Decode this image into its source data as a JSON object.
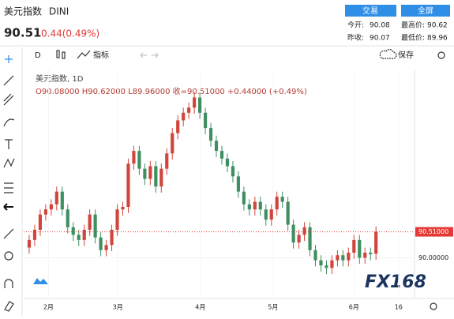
{
  "header": {
    "title": "美元指数",
    "symbol": "DINI",
    "price": 90.51,
    "change": "0.44(0.49%)",
    "buttons": [
      "交易",
      "全屏"
    ],
    "stats": [
      {
        "label": "今开:",
        "value": 90.08
      },
      {
        "label": "最高价:",
        "value": 90.62
      },
      {
        "label": "昨收:",
        "value": 90.07
      },
      {
        "label": "最低价:",
        "value": 89.96
      }
    ]
  },
  "toolbar": {
    "interval": "D",
    "indicators": "指标",
    "save": "保存"
  },
  "logo": "FX168",
  "chart_data": {
    "type": "candlestick",
    "name": "美元指数, 1D",
    "ohlc_text": "O90.08000 H90.62000 L89.96000 收=90.51000 +0.44000 (+0.49%)",
    "up_color": "#d0463c",
    "down_color": "#3f8f62",
    "xlim": [
      -1,
      70
    ],
    "xticks": [
      {
        "value": 3.5,
        "label": "2月"
      },
      {
        "value": 16.1,
        "label": "3月"
      },
      {
        "value": 31.1,
        "label": "4月"
      },
      {
        "value": 44.3,
        "label": "5月"
      },
      {
        "value": 59,
        "label": "6月"
      },
      {
        "value": 67.1,
        "label": "16"
      }
    ],
    "ylim": [
      89.2,
      93.7
    ],
    "yticks": [
      {
        "value": 90,
        "label": "90.00000"
      }
    ],
    "last_price": {
      "value": 90.51,
      "label": "90.51000",
      "color": "#e53935"
    },
    "open": [
      90.2,
      90.35,
      90.55,
      90.85,
      90.95,
      91.05,
      91.3,
      90.95,
      90.6,
      90.45,
      90.35,
      90.55,
      90.85,
      90.4,
      90.15,
      90.25,
      90.55,
      90.95,
      91.0,
      91.85,
      92.1,
      91.75,
      91.55,
      91.8,
      91.4,
      91.75,
      92.05,
      92.45,
      92.7,
      92.85,
      92.95,
      93.15,
      92.85,
      92.55,
      92.3,
      92.1,
      91.95,
      91.8,
      91.6,
      91.3,
      91.05,
      90.95,
      91.1,
      90.95,
      90.75,
      90.95,
      91.2,
      91.1,
      90.65,
      90.3,
      90.45,
      90.6,
      90.15,
      89.95,
      89.85,
      89.8,
      89.95,
      90.05,
      89.95,
      90.1,
      90.35,
      90.0,
      90.1,
      90.08
    ],
    "high": [
      90.45,
      90.65,
      90.95,
      91.05,
      91.15,
      91.4,
      91.4,
      91.05,
      90.7,
      90.55,
      90.65,
      90.95,
      90.95,
      90.5,
      90.35,
      90.65,
      91.05,
      91.1,
      91.95,
      92.2,
      92.2,
      91.85,
      91.9,
      91.9,
      91.85,
      92.15,
      92.55,
      92.8,
      92.95,
      93.05,
      93.25,
      93.25,
      92.95,
      92.65,
      92.4,
      92.2,
      92.05,
      91.9,
      91.7,
      91.4,
      91.15,
      91.2,
      91.2,
      91.05,
      91.05,
      91.3,
      91.3,
      91.2,
      90.75,
      90.55,
      90.7,
      90.7,
      90.25,
      90.05,
      89.95,
      90.05,
      90.15,
      90.15,
      90.2,
      90.45,
      90.45,
      90.2,
      90.2,
      90.62
    ],
    "low": [
      90.08,
      90.23,
      90.43,
      90.73,
      90.83,
      90.93,
      90.83,
      90.48,
      90.33,
      90.23,
      90.23,
      90.43,
      90.28,
      90.03,
      90.03,
      90.13,
      90.43,
      90.83,
      90.88,
      91.73,
      91.63,
      91.43,
      91.43,
      91.28,
      91.28,
      91.63,
      91.93,
      92.33,
      92.58,
      92.73,
      92.83,
      92.73,
      92.43,
      92.18,
      91.98,
      91.83,
      91.68,
      91.48,
      91.18,
      90.93,
      90.83,
      90.83,
      90.83,
      90.63,
      90.63,
      90.83,
      90.98,
      90.53,
      90.18,
      90.18,
      90.33,
      90.03,
      89.83,
      89.73,
      89.68,
      89.68,
      89.83,
      89.83,
      89.83,
      89.98,
      89.88,
      89.88,
      89.95,
      89.96
    ],
    "close": [
      90.35,
      90.55,
      90.85,
      90.95,
      91.05,
      91.3,
      90.95,
      90.6,
      90.45,
      90.35,
      90.55,
      90.85,
      90.4,
      90.15,
      90.25,
      90.55,
      90.95,
      91.0,
      91.85,
      92.1,
      91.75,
      91.55,
      91.8,
      91.4,
      91.75,
      92.05,
      92.45,
      92.7,
      92.85,
      92.95,
      93.15,
      92.85,
      92.55,
      92.3,
      92.1,
      91.95,
      91.8,
      91.6,
      91.3,
      91.05,
      90.95,
      91.1,
      90.95,
      90.75,
      90.95,
      91.2,
      91.1,
      90.65,
      90.3,
      90.45,
      90.6,
      90.15,
      89.95,
      89.85,
      89.8,
      89.95,
      90.05,
      89.95,
      90.1,
      90.35,
      90.0,
      90.1,
      90.07,
      90.51
    ]
  }
}
